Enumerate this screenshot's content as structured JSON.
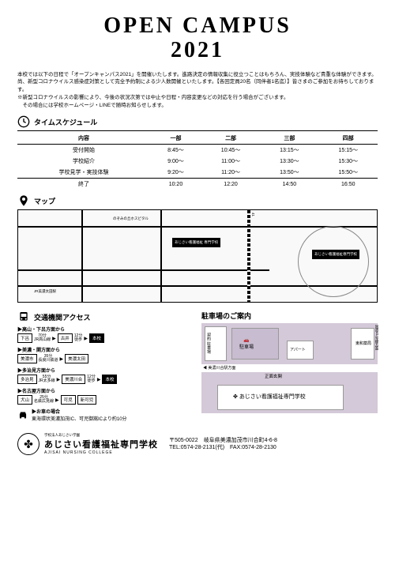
{
  "title1": "OPEN CAMPUS",
  "title2": "2021",
  "intro": "本校では以下の日程で「オープンキャンパス2021」を開催いたします。進路決定の情報収集に役立つことはもちろん、実技体験など貴重な体験ができます。尚、新型コロナウイルス感染症対策として完全予約制による少人数開催といたします。【各回定員20名（同伴者1名迄）】皆さまのご参加をお待ちしております。",
  "intro2": "※新型コロナウイルスの影響により、今後の状況次第では中止や日程・内容変更などの対応を行う場合がございます。",
  "intro3": "　その場合には学校ホームページ・LINEで随時お知らせします。",
  "sched": {
    "h": "タイムスケジュール",
    "cols": [
      "内容",
      "一部",
      "二部",
      "三部",
      "四部"
    ],
    "rows": [
      [
        "受付開始",
        "8:45～",
        "10:45～",
        "13:15～",
        "15:15～"
      ],
      [
        "学校紹介",
        "9:00～",
        "11:00～",
        "13:30～",
        "15:30～"
      ],
      [
        "学校見学・実技体験",
        "9:20～",
        "11:20～",
        "13:50～",
        "15:50～"
      ],
      [
        "終了",
        "10:20",
        "12:20",
        "14:50",
        "16:50"
      ]
    ]
  },
  "mapH": "マップ",
  "mapLabels": {
    "school": "あじさい看護福祉\n専門学校",
    "river": "のぞみの丘ホスピタル",
    "st1": "JR美濃太田駅",
    "rd": "国道41号線"
  },
  "accH": "交通機関アクセス",
  "parkH": "駐車場のご案内",
  "routes": [
    {
      "t": "▶高山・下呂方面から",
      "s": [
        [
          "下呂",
          "70分",
          "JR高山線"
        ],
        [
          "古井",
          "12分",
          "徒歩"
        ],
        [
          "本校",
          ""
        ]
      ]
    },
    {
      "t": "▶美濃・関方面から",
      "s": [
        [
          "美濃市",
          "35分",
          "長良川鉄道"
        ],
        [
          "美濃太田",
          "",
          ""
        ]
      ]
    },
    {
      "t": "▶多治見方面から",
      "s": [
        [
          "多治見",
          "55分",
          "JR太多線"
        ],
        [
          "美濃川合",
          "12分",
          "徒歩"
        ],
        [
          "本校",
          ""
        ]
      ]
    },
    {
      "t": "▶名古屋方面から",
      "s": [
        [
          "犬山",
          "25分",
          "名鉄広見線"
        ],
        [
          "可児",
          "",
          ""
        ],
        [
          "新可児",
          "",
          ""
        ]
      ]
    }
  ],
  "car": {
    "t": "▶お車の場合",
    "txt": "東海環状美濃加茂IC、可児御嵩ICより約10分"
  },
  "park": {
    "lot": "契約\n駐車場",
    "p": "駐車場",
    "apt": "アパート",
    "rd": "国道41号線方面",
    "east": "東和薬局",
    "st": "美濃川合駅方面",
    "ent": "正面玄関",
    "sch": "あじさい看護福祉専門学校"
  },
  "foot": {
    "org": "学校法人あじさい学園",
    "name": "あじさい看護福祉専門学校",
    "en": "AJISAI NURSING COLLEGE",
    "addr": "〒505-0022　岐阜県美濃加茂市川合町4-6-8",
    "tel": "TEL:0574-28-2131(代)　FAX:0574-28-2130"
  }
}
